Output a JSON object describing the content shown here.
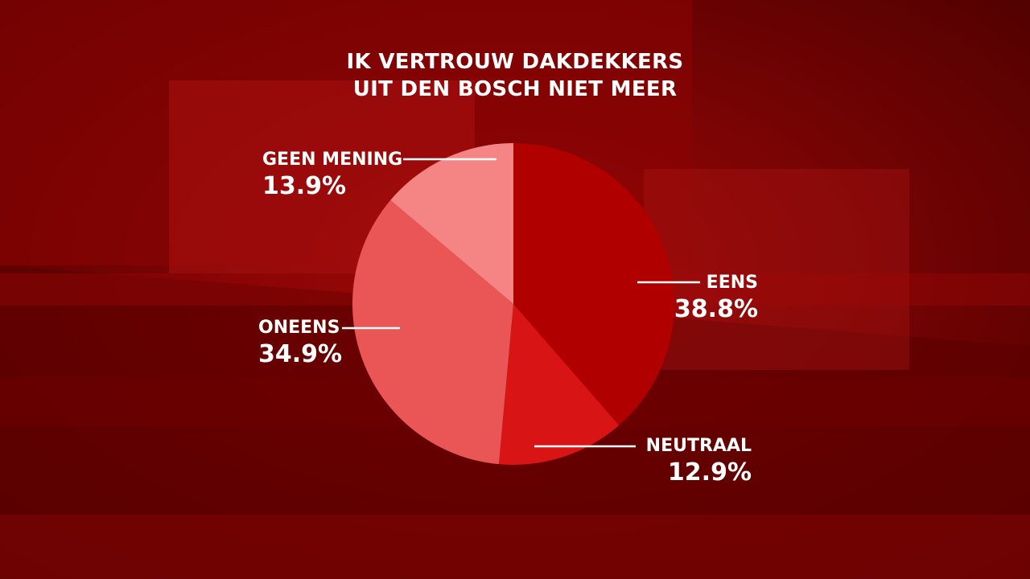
{
  "colors": {
    "background": "#7a0000",
    "text": "#ffffff",
    "leader_line": "#ffffff"
  },
  "chart_data": {
    "type": "pie",
    "title": [
      "IK VERTROUW DAKDEKKERS",
      "UIT DEN BOSCH NIET MEER"
    ],
    "categories": [
      "EENS",
      "NEUTRAAL",
      "ONEENS",
      "GEEN MENING"
    ],
    "values": [
      38.8,
      12.9,
      34.9,
      13.9
    ],
    "value_labels": [
      "38.8%",
      "12.9%",
      "34.9%",
      "13.9%"
    ],
    "slices": [
      {
        "label": "EENS",
        "value_label": "38.8%",
        "color": "#b00000"
      },
      {
        "label": "NEUTRAAL",
        "value_label": "12.9%",
        "color": "#d91414"
      },
      {
        "label": "ONEENS",
        "value_label": "34.9%",
        "color": "#ea5656"
      },
      {
        "label": "GEEN MENING",
        "value_label": "13.9%",
        "color": "#f58585"
      }
    ],
    "start_angle": "top, clockwise"
  }
}
